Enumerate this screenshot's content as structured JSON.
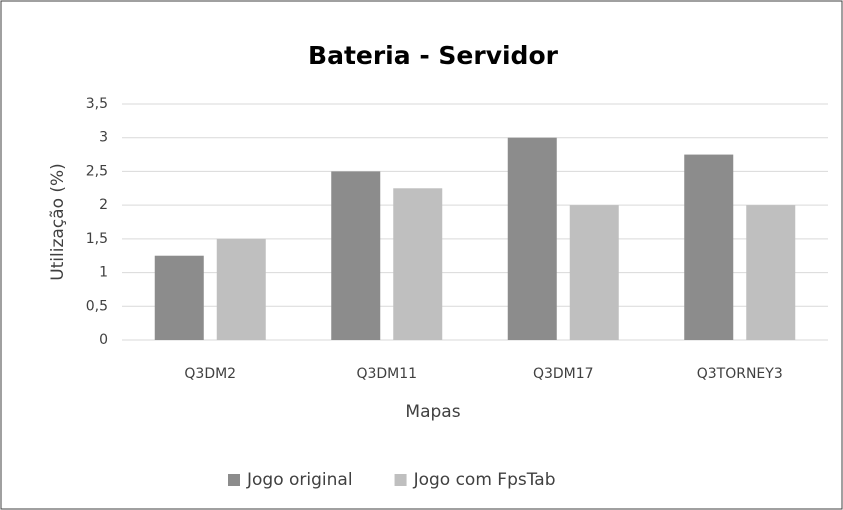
{
  "chart_data": {
    "type": "bar",
    "title": "Bateria - Servidor",
    "x_label": "Mapas",
    "y_label": "Utilização (%)",
    "categories": [
      "Q3DM2",
      "Q3DM11",
      "Q3DM17",
      "Q3TORNEY3"
    ],
    "series": [
      {
        "name": "Jogo original",
        "color": "#8c8c8c",
        "values": [
          1.25,
          2.5,
          3,
          2.75
        ]
      },
      {
        "name": "Jogo com FpsTab",
        "color": "#bfbfbf",
        "values": [
          1.5,
          2.25,
          2,
          2
        ]
      }
    ],
    "ylim": [
      0,
      3.5
    ],
    "yticks": [
      0,
      {
        "value": 0.5,
        "label": "0,5"
      },
      1,
      {
        "value": 1.5,
        "label": "1,5"
      },
      2,
      {
        "value": 2.5,
        "label": "2,5"
      },
      3,
      {
        "value": 3.5,
        "label": "3,5"
      }
    ],
    "grid": true,
    "legend": "bottom"
  }
}
